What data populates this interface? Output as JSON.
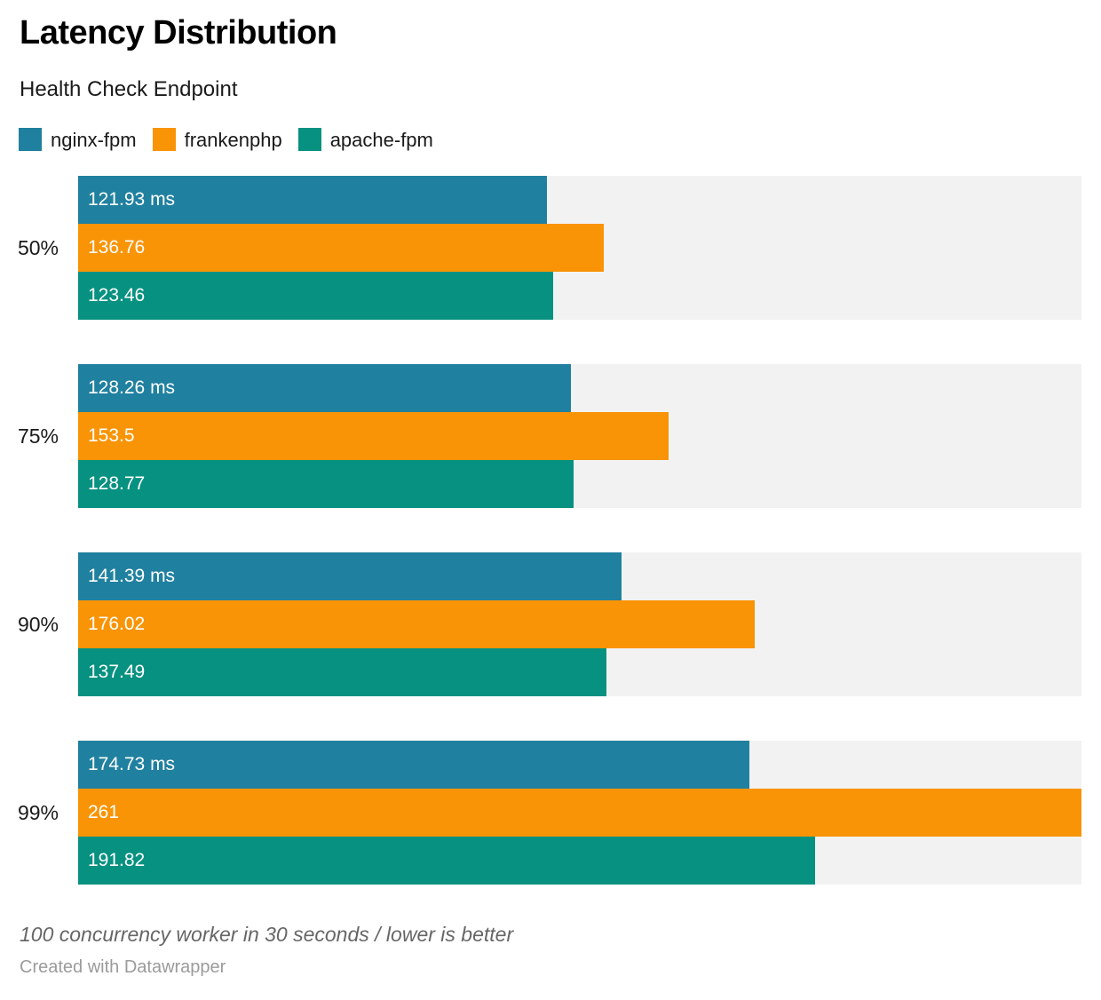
{
  "header": {
    "title": "Latency Distribution",
    "subtitle": "Health Check Endpoint"
  },
  "chart_data": {
    "type": "bar",
    "orientation": "horizontal",
    "title": "Latency Distribution",
    "subtitle": "Health Check Endpoint",
    "categories": [
      "50%",
      "75%",
      "90%",
      "99%"
    ],
    "series": [
      {
        "name": "nginx-fpm",
        "color": "#20809f",
        "values": [
          121.93,
          128.26,
          141.39,
          174.73
        ],
        "labels": [
          "121.93 ms",
          "128.26 ms",
          "141.39 ms",
          "174.73 ms"
        ]
      },
      {
        "name": "frankenphp",
        "color": "#f89406",
        "values": [
          136.76,
          153.5,
          176.02,
          261
        ],
        "labels": [
          "136.76",
          "153.5",
          "176.02",
          "261"
        ]
      },
      {
        "name": "apache-fpm",
        "color": "#079180",
        "values": [
          123.46,
          128.77,
          137.49,
          191.82
        ],
        "labels": [
          "123.46",
          "128.77",
          "137.49",
          "191.82"
        ]
      }
    ],
    "unit": "ms",
    "xlim": [
      0,
      261
    ],
    "grid": false,
    "legend_position": "top",
    "track_color": "#f2f2f2",
    "value_label_position": "inside-left",
    "value_label_color": "#ffffff"
  },
  "footer": {
    "note": "100 concurrency worker in 30 seconds / lower is better",
    "credit": "Created with Datawrapper"
  }
}
